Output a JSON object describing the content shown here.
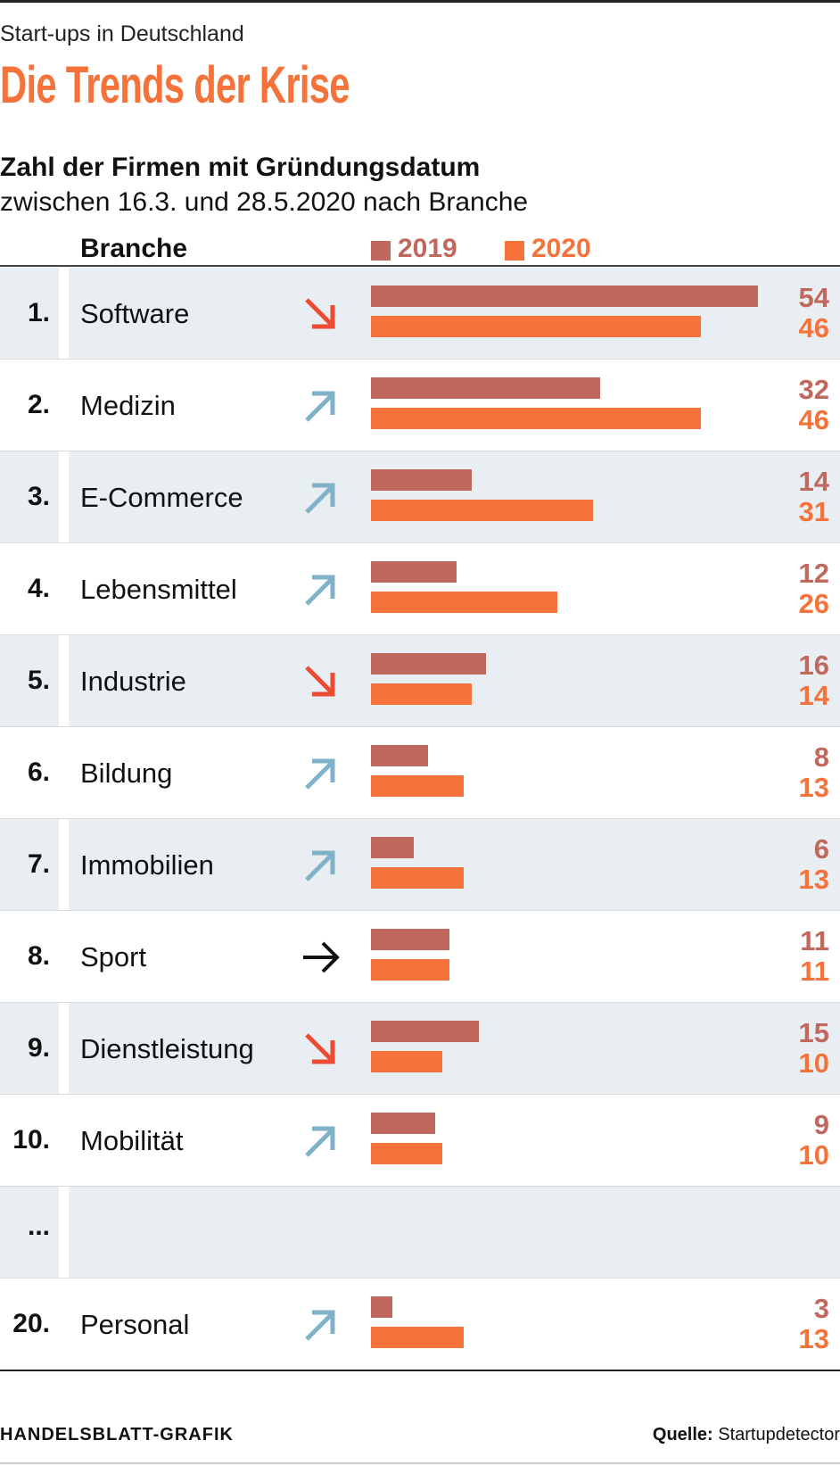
{
  "kicker": "Start-ups in Deutschland",
  "title": "Die Trends der Krise",
  "footer": {
    "brand": "HANDELSBLATT-GRAFIK",
    "source_label": "Quelle:",
    "source": "Startupdetector"
  },
  "colors": {
    "y2019": "#c0675e",
    "y2020": "#f5733a",
    "up": "#7fb2c8",
    "down": "#ee4b35",
    "flat": "#111111"
  },
  "chart_data": {
    "type": "bar",
    "title": "Zahl der Firmen mit Gründungsdatum",
    "subtitle": "zwischen 16.3. und 28.5.2020 nach Branche",
    "column_header": "Branche",
    "legend": [
      "2019",
      "2020"
    ],
    "xlim": [
      0,
      54
    ],
    "rows": [
      {
        "rank": "1.",
        "name": "Software",
        "trend": "down",
        "v2019": 54,
        "v2020": 46
      },
      {
        "rank": "2.",
        "name": "Medizin",
        "trend": "up",
        "v2019": 32,
        "v2020": 46
      },
      {
        "rank": "3.",
        "name": "E-Commerce",
        "trend": "up",
        "v2019": 14,
        "v2020": 31
      },
      {
        "rank": "4.",
        "name": "Lebensmittel",
        "trend": "up",
        "v2019": 12,
        "v2020": 26
      },
      {
        "rank": "5.",
        "name": "Industrie",
        "trend": "down",
        "v2019": 16,
        "v2020": 14
      },
      {
        "rank": "6.",
        "name": "Bildung",
        "trend": "up",
        "v2019": 8,
        "v2020": 13
      },
      {
        "rank": "7.",
        "name": "Immobilien",
        "trend": "up",
        "v2019": 6,
        "v2020": 13
      },
      {
        "rank": "8.",
        "name": "Sport",
        "trend": "flat",
        "v2019": 11,
        "v2020": 11
      },
      {
        "rank": "9.",
        "name": "Dienstleistung",
        "trend": "down",
        "v2019": 15,
        "v2020": 10
      },
      {
        "rank": "10.",
        "name": "Mobilität",
        "trend": "up",
        "v2019": 9,
        "v2020": 10
      },
      {
        "rank": "...",
        "name": "",
        "trend": "",
        "v2019": null,
        "v2020": null
      },
      {
        "rank": "20.",
        "name": "Personal",
        "trend": "up",
        "v2019": 3,
        "v2020": 13
      }
    ]
  }
}
